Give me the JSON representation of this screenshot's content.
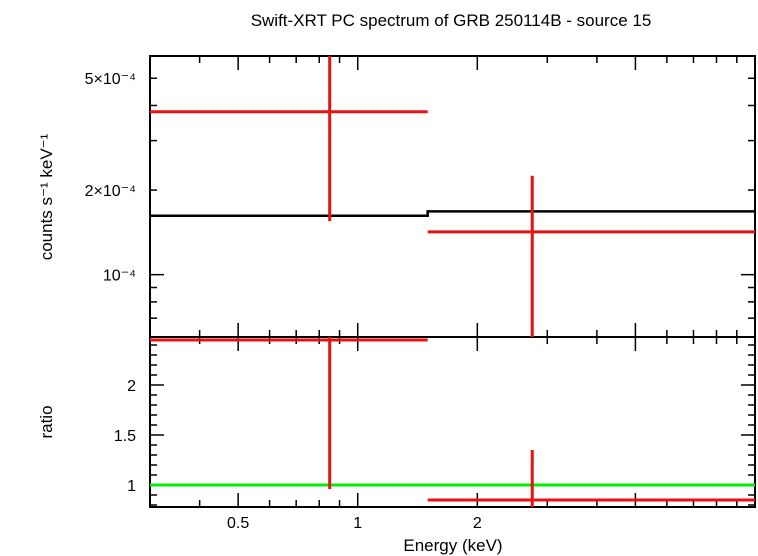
{
  "chart_data": [
    {
      "type": "line",
      "panel": "spectrum",
      "title": "Swift-XRT PC spectrum of GRB 250114B - source 15",
      "ylabel": "counts s⁻¹ keV⁻¹",
      "xlim": [
        0.3,
        10
      ],
      "ylim": [
        6e-05,
        0.0006
      ],
      "xscale": "log",
      "yscale": "log",
      "yticks": [
        {
          "value": 0.0005,
          "label": "5×10⁻⁴"
        },
        {
          "value": 0.0002,
          "label": "2×10⁻⁴"
        },
        {
          "value": 0.0001,
          "label": "10⁻⁴"
        }
      ],
      "data_points": [
        {
          "x": 0.85,
          "xlo": 0.3,
          "xhi": 1.5,
          "y": 0.00038,
          "ylo": 0.000155,
          "yhi": 0.00061
        },
        {
          "x": 2.75,
          "xlo": 1.5,
          "xhi": 10,
          "y": 0.000142,
          "ylo": 6e-05,
          "yhi": 0.000225
        }
      ],
      "model": [
        {
          "xlo": 0.3,
          "xhi": 1.5,
          "y": 0.000162
        },
        {
          "xlo": 1.5,
          "xhi": 10,
          "y": 0.000168
        }
      ]
    },
    {
      "type": "line",
      "panel": "ratio",
      "xlabel": "Energy (keV)",
      "ylabel": "ratio",
      "xlim": [
        0.3,
        10
      ],
      "ylim": [
        0.78,
        2.48
      ],
      "xscale": "log",
      "xticks": [
        {
          "value": 0.5,
          "label": "0.5"
        },
        {
          "value": 1,
          "label": "1"
        },
        {
          "value": 2,
          "label": "2"
        }
      ],
      "yticks": [
        {
          "value": 2,
          "label": "2"
        },
        {
          "value": 1.5,
          "label": "1.5"
        },
        {
          "value": 1,
          "label": "1"
        }
      ],
      "data_points": [
        {
          "x": 0.85,
          "xlo": 0.3,
          "xhi": 1.5,
          "y": 2.45,
          "ylo": 0.96,
          "yhi": 2.5
        },
        {
          "x": 2.75,
          "xlo": 1.5,
          "xhi": 10,
          "y": 0.85,
          "ylo": 0.78,
          "yhi": 1.35
        }
      ],
      "reference_line": 1
    }
  ],
  "colors": {
    "data": "#e8120e",
    "model": "#000000",
    "unity": "#00ee00"
  }
}
